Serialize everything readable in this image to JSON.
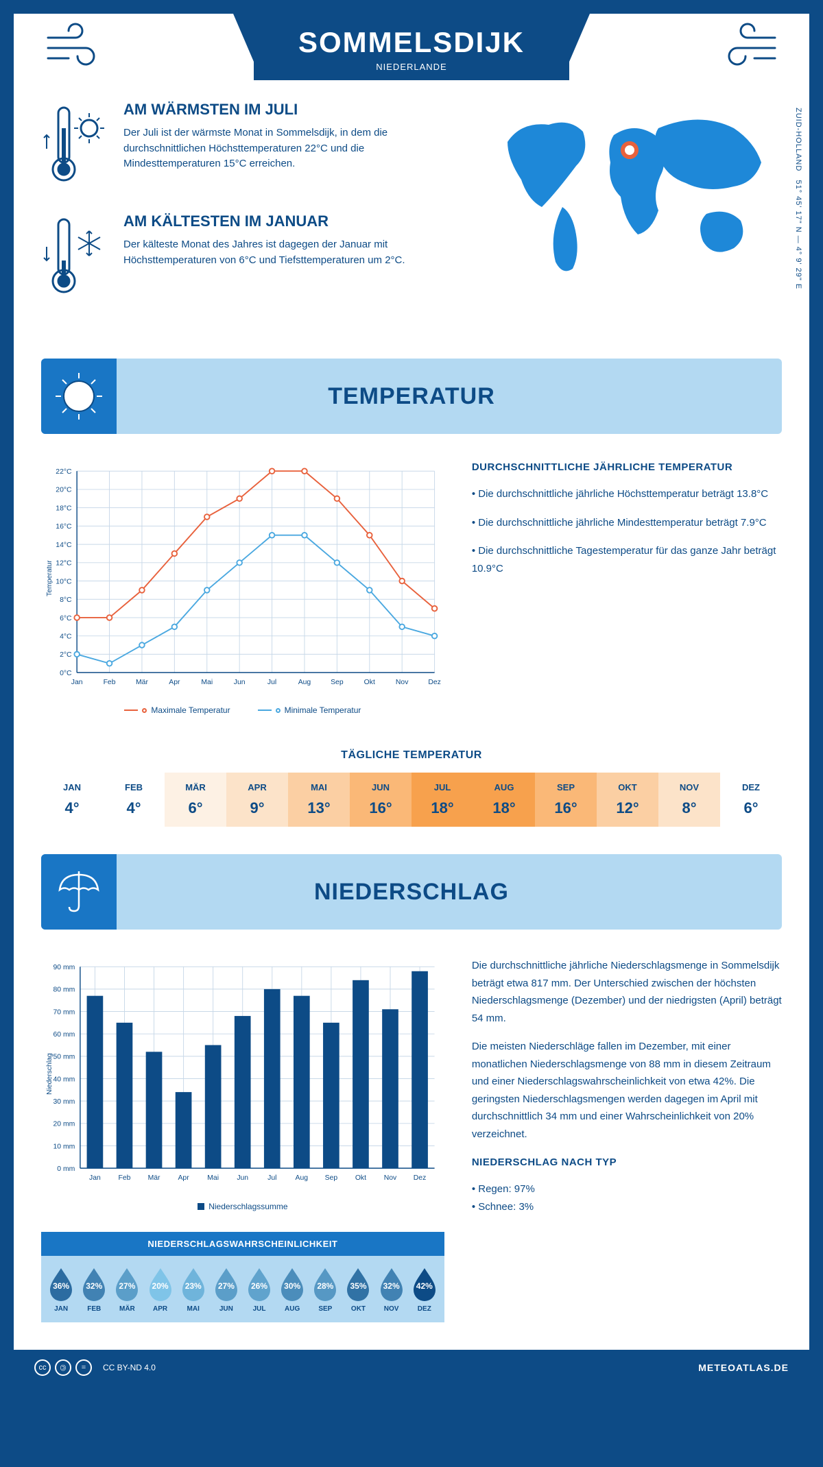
{
  "header": {
    "city": "SOMMELSDIJK",
    "country": "NIEDERLANDE"
  },
  "coords": "51° 45' 17\" N — 4° 9' 29\" E",
  "region": "ZUID-HOLLAND",
  "warm": {
    "title": "AM WÄRMSTEN IM JULI",
    "text": "Der Juli ist der wärmste Monat in Sommelsdijk, in dem die durchschnittlichen Höchsttemperaturen 22°C und die Mindesttemperaturen 15°C erreichen."
  },
  "cold": {
    "title": "AM KÄLTESTEN IM JANUAR",
    "text": "Der kälteste Monat des Jahres ist dagegen der Januar mit Höchsttemperaturen von 6°C und Tiefsttemperaturen um 2°C."
  },
  "sections": {
    "temp": "TEMPERATUR",
    "precip": "NIEDERSCHLAG"
  },
  "temp_chart": {
    "type": "line",
    "months": [
      "Jan",
      "Feb",
      "Mär",
      "Apr",
      "Mai",
      "Jun",
      "Jul",
      "Aug",
      "Sep",
      "Okt",
      "Nov",
      "Dez"
    ],
    "max_series": {
      "label": "Maximale Temperatur",
      "color": "#e8613c",
      "values": [
        6,
        6,
        9,
        13,
        17,
        19,
        22,
        22,
        19,
        15,
        10,
        7
      ]
    },
    "min_series": {
      "label": "Minimale Temperatur",
      "color": "#4aa8e0",
      "values": [
        2,
        1,
        3,
        5,
        9,
        12,
        15,
        15,
        12,
        9,
        5,
        4
      ]
    },
    "ylabel": "Temperatur",
    "ylim": [
      0,
      22
    ],
    "ytick_step": 2,
    "y_suffix": "°C",
    "grid_color": "#c8d8e8",
    "axis_color": "#0d4b86",
    "line_width": 2,
    "marker_size": 4,
    "background": "#ffffff"
  },
  "temp_side": {
    "title": "DURCHSCHNITTLICHE JÄHRLICHE TEMPERATUR",
    "bullets": [
      "• Die durchschnittliche jährliche Höchsttemperatur beträgt 13.8°C",
      "• Die durchschnittliche jährliche Mindesttemperatur beträgt 7.9°C",
      "• Die durchschnittliche Tagestemperatur für das ganze Jahr beträgt 10.9°C"
    ]
  },
  "daily": {
    "title": "TÄGLICHE TEMPERATUR",
    "months": [
      "JAN",
      "FEB",
      "MÄR",
      "APR",
      "MAI",
      "JUN",
      "JUL",
      "AUG",
      "SEP",
      "OKT",
      "NOV",
      "DEZ"
    ],
    "values": [
      "4°",
      "4°",
      "6°",
      "9°",
      "13°",
      "16°",
      "18°",
      "18°",
      "16°",
      "12°",
      "8°",
      "6°"
    ],
    "colors": [
      "#ffffff",
      "#ffffff",
      "#fdf1e4",
      "#fce3c9",
      "#fbcfa3",
      "#fab877",
      "#f7a14d",
      "#f7a14d",
      "#fab877",
      "#fbcfa3",
      "#fce3c9",
      "#ffffff"
    ]
  },
  "precip_chart": {
    "type": "bar",
    "months": [
      "Jan",
      "Feb",
      "Mär",
      "Apr",
      "Mai",
      "Jun",
      "Jul",
      "Aug",
      "Sep",
      "Okt",
      "Nov",
      "Dez"
    ],
    "values": [
      77,
      65,
      52,
      34,
      55,
      68,
      80,
      77,
      65,
      84,
      71,
      88
    ],
    "bar_color": "#0d4b86",
    "ylabel": "Niederschlag",
    "ylim": [
      0,
      90
    ],
    "ytick_step": 10,
    "y_suffix": " mm",
    "grid_color": "#c8d8e8",
    "axis_color": "#0d4b86",
    "bar_width": 0.55,
    "legend_label": "Niederschlagssumme",
    "background": "#ffffff"
  },
  "precip_side": {
    "paras": [
      "Die durchschnittliche jährliche Niederschlagsmenge in Sommelsdijk beträgt etwa 817 mm. Der Unterschied zwischen der höchsten Niederschlagsmenge (Dezember) und der niedrigsten (April) beträgt 54 mm.",
      "Die meisten Niederschläge fallen im Dezember, mit einer monatlichen Niederschlagsmenge von 88 mm in diesem Zeitraum und einer Niederschlagswahrscheinlichkeit von etwa 42%. Die geringsten Niederschlagsmengen werden dagegen im April mit durchschnittlich 34 mm und einer Wahrscheinlichkeit von 20% verzeichnet."
    ],
    "type_title": "NIEDERSCHLAG NACH TYP",
    "types": [
      "• Regen: 97%",
      "• Schnee: 3%"
    ]
  },
  "prob": {
    "title": "NIEDERSCHLAGSWAHRSCHEINLICHKEIT",
    "months": [
      "JAN",
      "FEB",
      "MÄR",
      "APR",
      "MAI",
      "JUN",
      "JUL",
      "AUG",
      "SEP",
      "OKT",
      "NOV",
      "DEZ"
    ],
    "values": [
      36,
      32,
      27,
      20,
      23,
      27,
      26,
      30,
      28,
      35,
      32,
      42
    ],
    "scale": {
      "min_color": "#7fc4e8",
      "max_color": "#0d4b86"
    }
  },
  "footer": {
    "license": "CC BY-ND 4.0",
    "site": "METEOATLAS.DE"
  }
}
